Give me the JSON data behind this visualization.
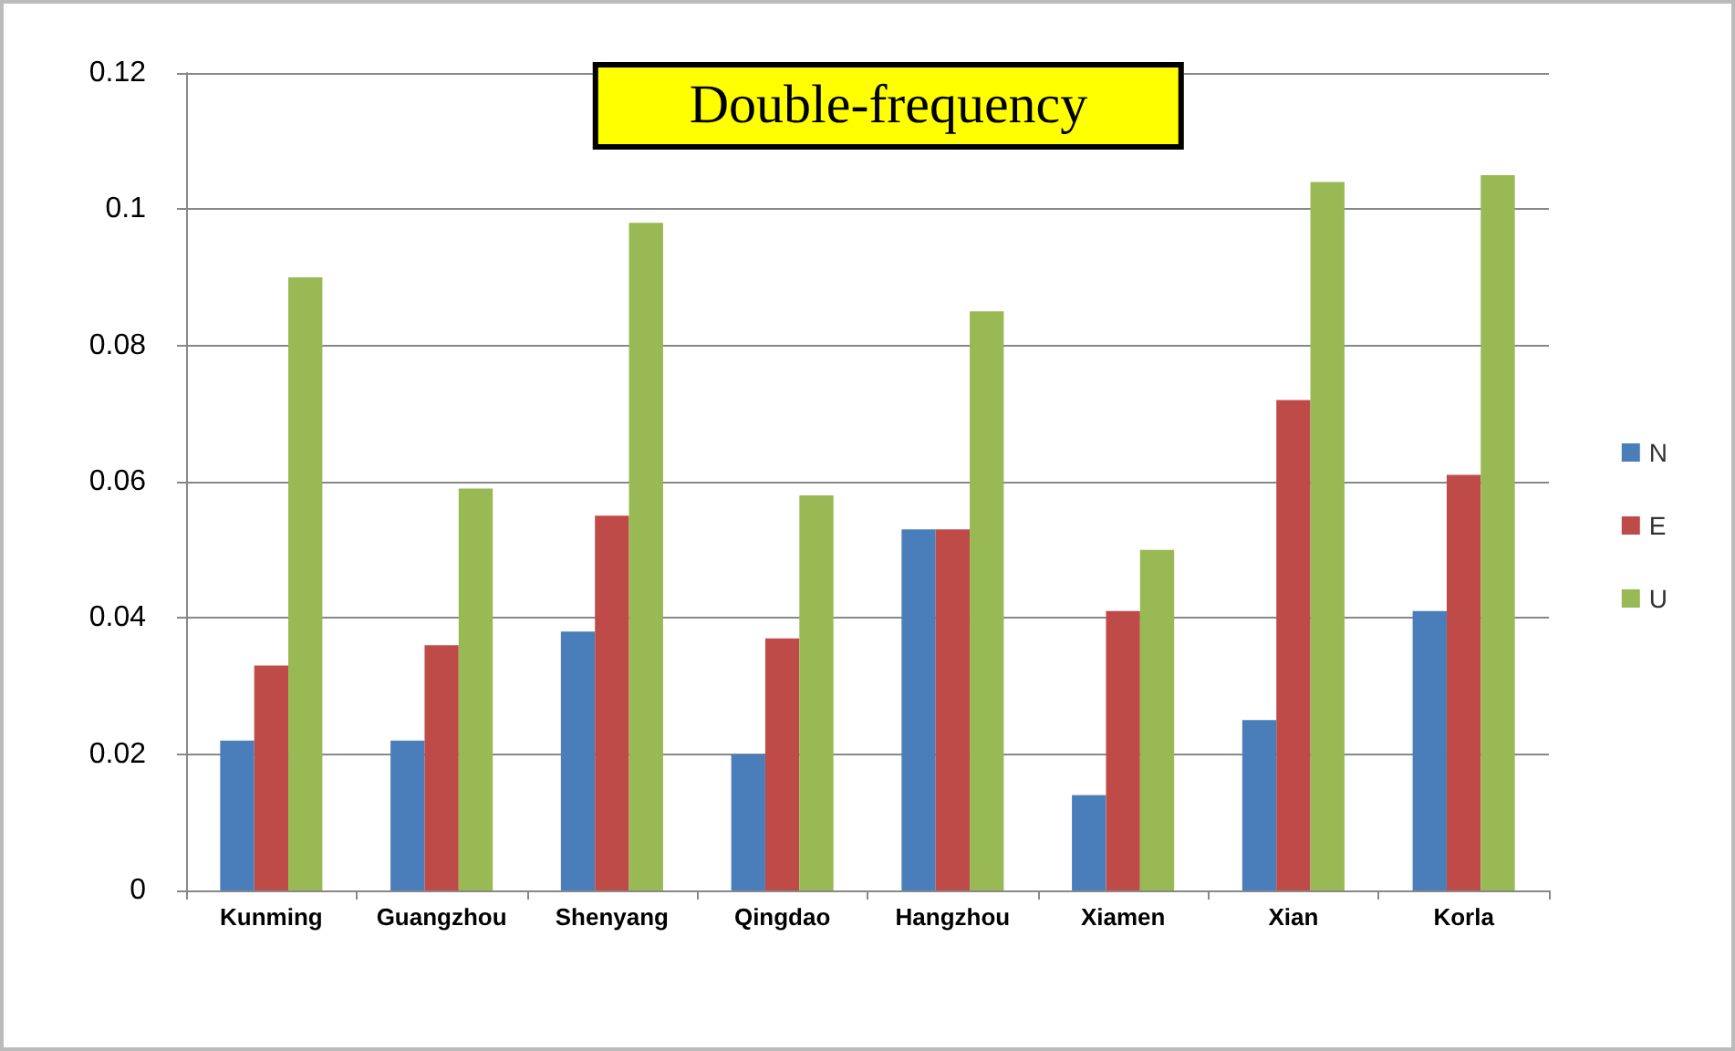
{
  "chart_data": {
    "type": "bar",
    "title": "Double-frequency",
    "categories": [
      "Kunming",
      "Guangzhou",
      "Shenyang",
      "Qingdao",
      "Hangzhou",
      "Xiamen",
      "Xian",
      "Korla"
    ],
    "series": [
      {
        "name": "N",
        "color": "#4a7ebb",
        "values": [
          0.022,
          0.022,
          0.038,
          0.02,
          0.053,
          0.014,
          0.025,
          0.041
        ]
      },
      {
        "name": "E",
        "color": "#be4b48",
        "values": [
          0.033,
          0.036,
          0.055,
          0.037,
          0.053,
          0.041,
          0.072,
          0.061
        ]
      },
      {
        "name": "U",
        "color": "#98b954",
        "values": [
          0.09,
          0.059,
          0.098,
          0.058,
          0.085,
          0.05,
          0.104,
          0.105
        ]
      }
    ],
    "ylim": [
      0,
      0.12
    ],
    "yticks": [
      0,
      0.02,
      0.04,
      0.06,
      0.08,
      0.1,
      0.12
    ],
    "grid": "y",
    "legend": "right"
  }
}
